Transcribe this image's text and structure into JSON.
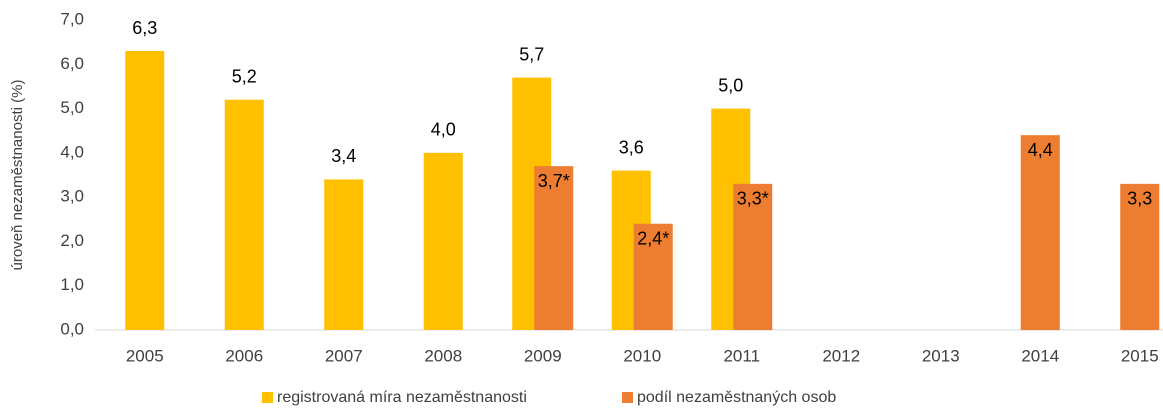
{
  "chart_data": {
    "type": "bar",
    "y_axis_label": "úroveň nezaměstnanosti (%)",
    "categories": [
      "2005",
      "2006",
      "2007",
      "2008",
      "2009",
      "2010",
      "2011",
      "2012",
      "2013",
      "2014",
      "2015"
    ],
    "series": [
      {
        "name": "registrovaná míra nezaměstnanosti",
        "color": "#ffc000",
        "values": [
          6.3,
          5.2,
          3.4,
          4.0,
          5.7,
          3.6,
          5.0,
          null,
          null,
          null,
          null
        ],
        "value_labels": [
          "6,3",
          "5,2",
          "3,4",
          "4,0",
          "5,7",
          "3,6",
          "5,0",
          null,
          null,
          null,
          null
        ]
      },
      {
        "name": "podíl nezaměstnaných osob",
        "color": "#ed7d31",
        "values": [
          null,
          null,
          null,
          null,
          3.7,
          2.4,
          3.3,
          null,
          null,
          4.4,
          3.3
        ],
        "value_labels": [
          null,
          null,
          null,
          null,
          "3,7*",
          "2,4*",
          "3,3*",
          null,
          null,
          "4,4",
          "3,3"
        ]
      }
    ],
    "ylim": [
      0,
      7
    ],
    "yticks": [
      {
        "value": 0,
        "label": "0,0"
      },
      {
        "value": 1,
        "label": "1,0"
      },
      {
        "value": 2,
        "label": "2,0"
      },
      {
        "value": 3,
        "label": "3,0"
      },
      {
        "value": 4,
        "label": "4,0"
      },
      {
        "value": 5,
        "label": "5,0"
      },
      {
        "value": 6,
        "label": "6,0"
      },
      {
        "value": 7,
        "label": "7,0"
      }
    ],
    "grid": false,
    "legend": "bottom"
  }
}
